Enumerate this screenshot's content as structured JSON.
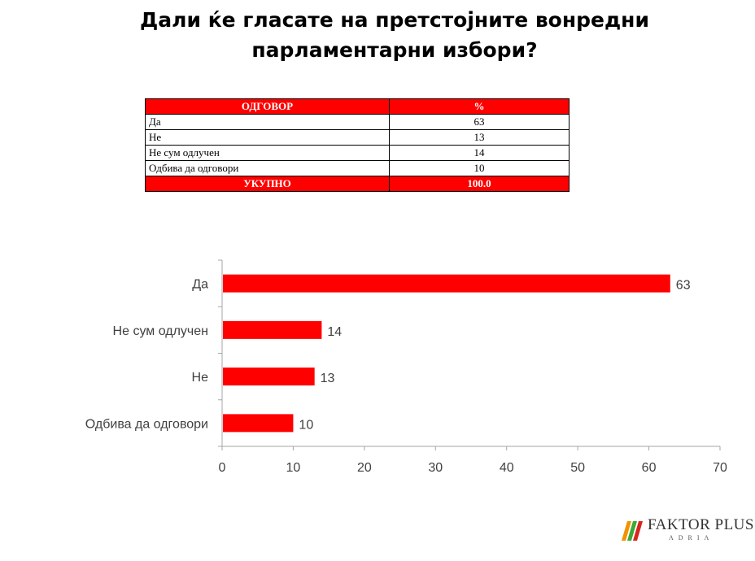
{
  "title": "Дали ќе гласате на претстојните вонредни парламентарни избори?",
  "table": {
    "header": [
      "ОДГОВОР",
      "%"
    ],
    "rows": [
      {
        "label": "Да",
        "value": "63"
      },
      {
        "label": "Не",
        "value": "13"
      },
      {
        "label": "Не сум одлучен",
        "value": "14"
      },
      {
        "label": "Одбива да одговори",
        "value": "10"
      }
    ],
    "footer": [
      "УКУПНО",
      "100.0"
    ]
  },
  "chart_data": {
    "type": "bar",
    "orientation": "horizontal",
    "categories": [
      "Да",
      "Не сум одлучен",
      "Не",
      "Одбива да одговори"
    ],
    "values": [
      63,
      14,
      13,
      10
    ],
    "xlim": [
      0,
      70
    ],
    "xticks": [
      0,
      10,
      20,
      30,
      40,
      50,
      60,
      70
    ],
    "grid": false,
    "bar_color": "#ff0000",
    "data_labels": true
  },
  "logo": {
    "text": "FAKTOR PLUS",
    "subtext": "ADRIA",
    "colors": {
      "orange": "#f39200",
      "green": "#3aaa35",
      "red": "#d7261e"
    }
  }
}
